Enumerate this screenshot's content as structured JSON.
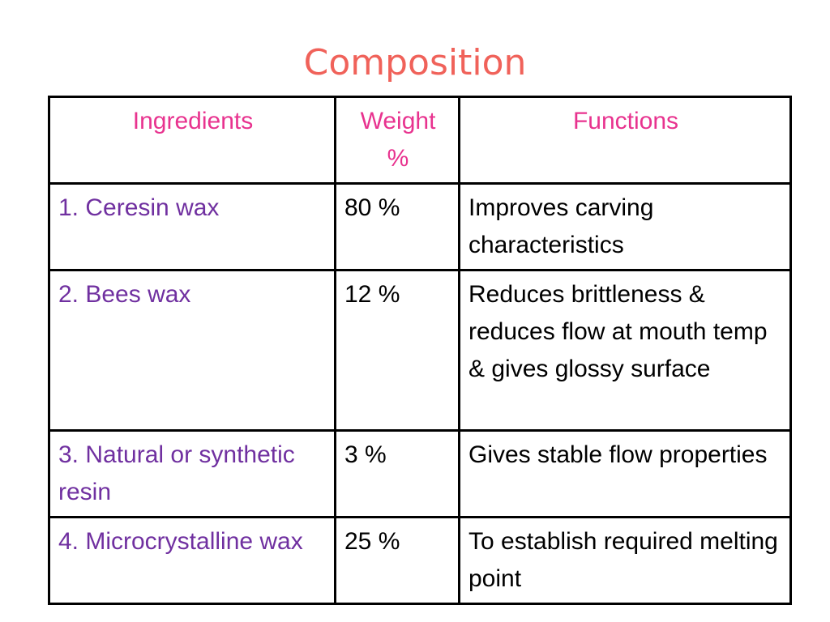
{
  "title": "Composition",
  "table": {
    "header": [
      "Ingredients",
      "Weight %",
      "Functions"
    ],
    "rows": [
      [
        "1. Ceresin wax",
        "80 %",
        "Improves carving characteristics"
      ],
      [
        "2. Bees wax",
        "12 %",
        "Reduces brittleness & reduces flow at mouth temp & gives glossy surface"
      ],
      [
        "3. Natural or synthetic resin",
        "3 %",
        "Gives stable flow properties"
      ],
      [
        "4. Microcrystalline wax",
        "25 %",
        "To establish required melting point"
      ]
    ]
  }
}
